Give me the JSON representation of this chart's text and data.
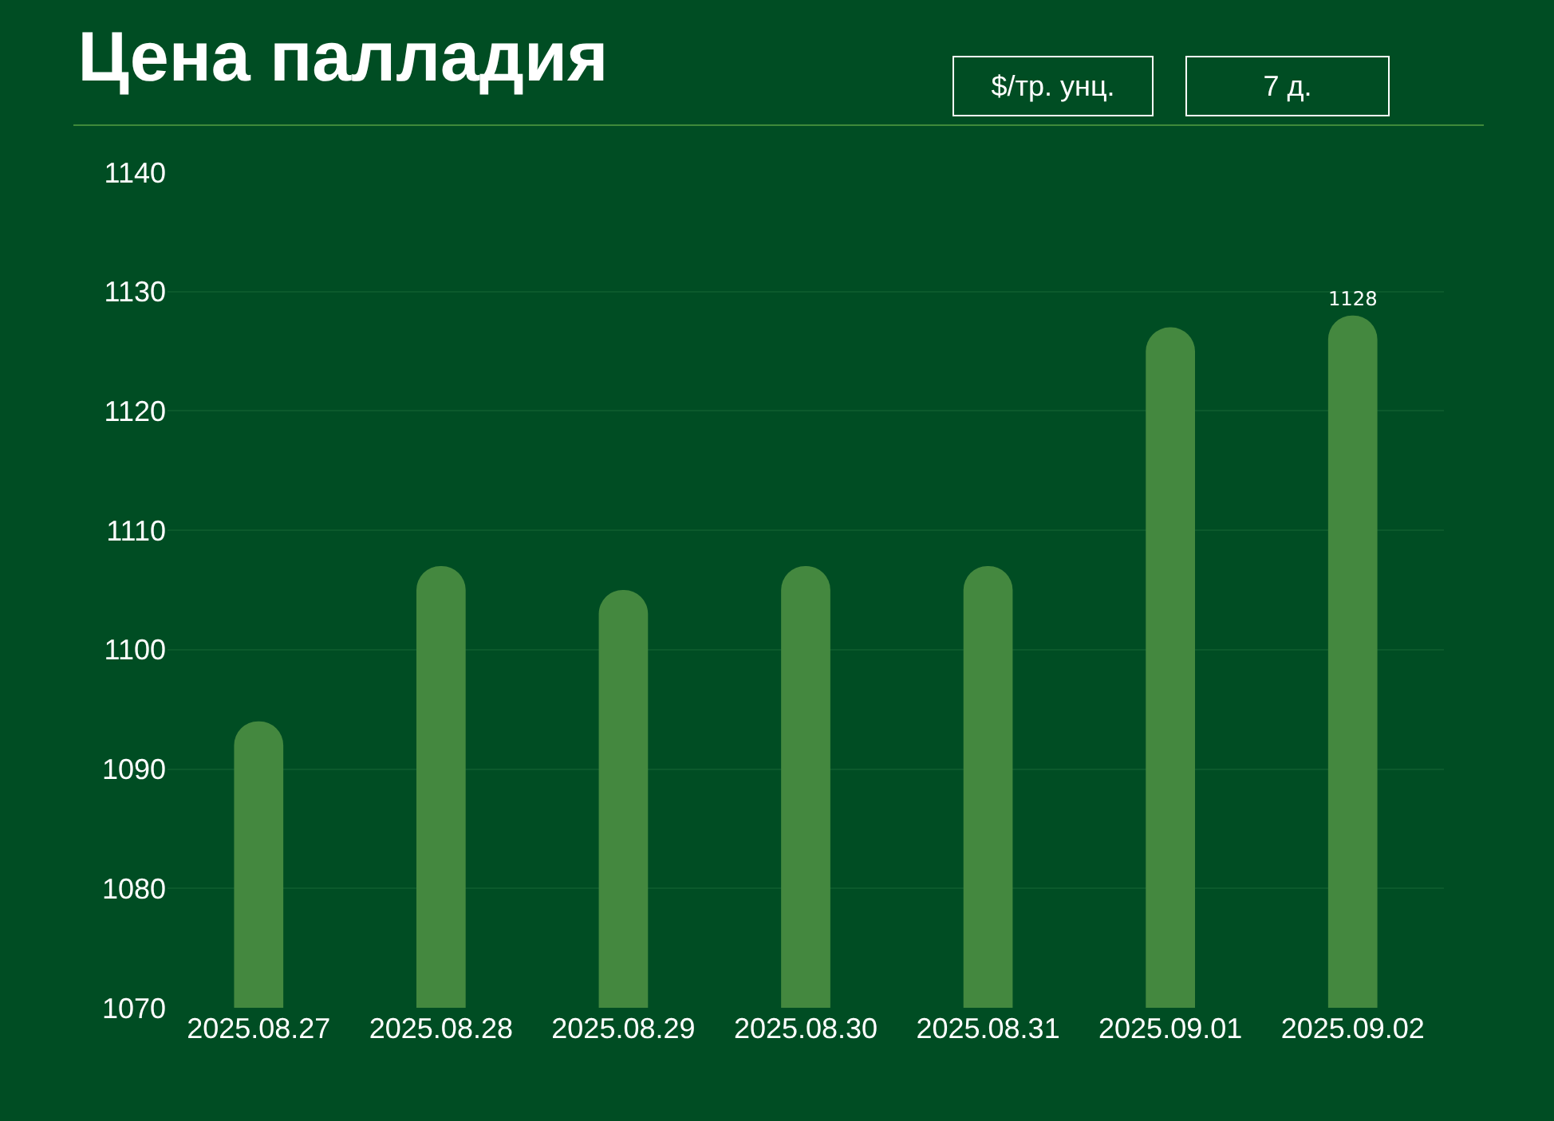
{
  "chart_data": {
    "type": "bar",
    "title": "Цена палладия",
    "annotations": [
      "$/тр. унц.",
      "7 д."
    ],
    "categories": [
      "2025.08.27",
      "2025.08.28",
      "2025.08.29",
      "2025.08.30",
      "2025.08.31",
      "2025.09.01",
      "2025.09.02"
    ],
    "values": [
      1094,
      1107,
      1105,
      1107,
      1107,
      1127,
      1128
    ],
    "value_labels": [
      null,
      null,
      null,
      null,
      null,
      null,
      "1128"
    ],
    "color": "#44883f",
    "ylim": [
      1070,
      1140
    ],
    "yticks": [
      1070,
      1080,
      1090,
      1100,
      1110,
      1120,
      1130,
      1140
    ],
    "grid": "y"
  }
}
